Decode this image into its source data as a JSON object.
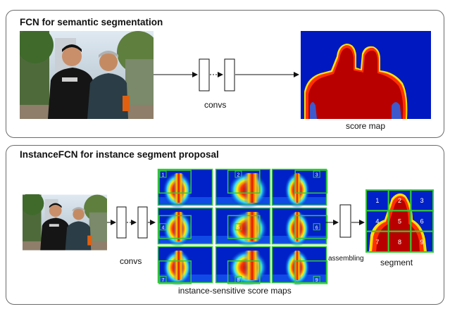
{
  "top_panel": {
    "title": "FCN for semantic segmentation",
    "convs_label": "convs",
    "output_label": "score map"
  },
  "bottom_panel": {
    "title": "InstanceFCN for instance segment proposal",
    "convs_label": "convs",
    "maps_label": "instance-sensitive score maps",
    "assembling_label": "assembling",
    "output_label": "segment",
    "map_cells": [
      "1",
      "2",
      "3",
      "4",
      "5",
      "6",
      "7",
      "8",
      "9"
    ],
    "segment_cells": [
      "1",
      "2",
      "3",
      "4",
      "5",
      "6",
      "7",
      "8",
      "9"
    ]
  },
  "colors": {
    "panel_border": "#6b6b6b",
    "grid_green": "#33cc33",
    "heat_low": "#0010c8",
    "heat_high": "#b80000",
    "arrow": "#111111"
  }
}
